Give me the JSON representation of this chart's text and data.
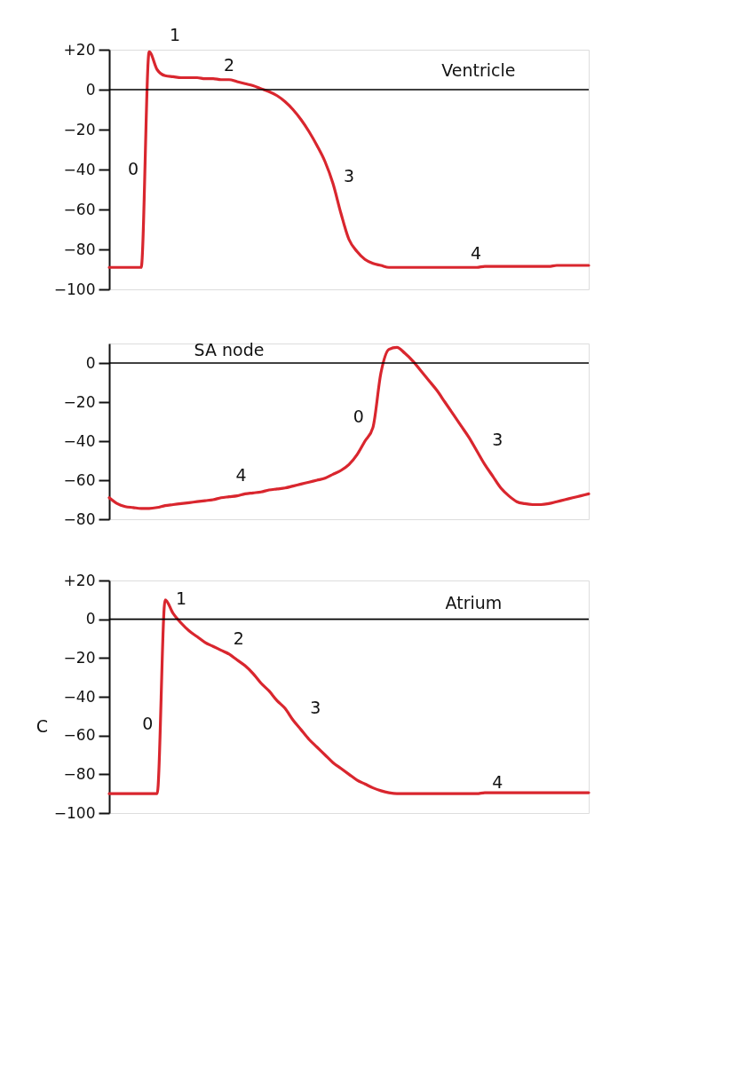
{
  "chart_data": [
    {
      "type": "line",
      "title": "Ventricle",
      "categories": [
        null,
        null,
        null,
        null,
        null,
        null,
        null,
        null,
        null,
        null,
        null,
        null,
        null,
        null,
        null,
        null,
        null,
        null,
        null,
        null,
        null,
        null,
        null,
        null,
        null,
        null,
        null,
        null,
        null,
        null,
        null,
        null,
        null,
        null,
        null,
        null,
        null,
        null,
        null,
        null,
        null,
        null,
        null,
        null,
        null,
        null,
        null,
        null,
        null,
        null,
        null,
        null,
        null,
        null,
        null,
        null,
        null,
        null,
        null,
        null,
        null
      ],
      "values": [
        -89,
        -89,
        -89,
        -89,
        -89,
        19,
        10,
        7,
        6.5,
        6,
        6,
        6,
        5.5,
        5.5,
        5,
        5,
        4,
        3,
        2,
        0.5,
        -1,
        -3,
        -6,
        -10,
        -15,
        -21,
        -28,
        -36,
        -47,
        -62,
        -75,
        -81,
        -85,
        -87,
        -88,
        -89,
        -89,
        -89,
        -89,
        -89,
        -89,
        -89,
        -89,
        -89,
        -89,
        -89,
        -89,
        -88.5,
        -88.5,
        -88.5,
        -88.5,
        -88.5,
        -88.5,
        -88.5,
        -88.5,
        -88.5,
        -88,
        -88,
        -88,
        -88,
        -88
      ],
      "color": "#d9262e",
      "ylim": [
        -100,
        20
      ],
      "yticks": [
        {
          "value": 20,
          "label": "+20"
        },
        0,
        -20,
        -40,
        -60,
        -80,
        -100
      ],
      "ref_lines": [
        {
          "axis": "y",
          "value": 0,
          "color": "#000000"
        }
      ],
      "annotations": [
        "0",
        "1",
        "2",
        "3",
        "4"
      ]
    },
    {
      "type": "line",
      "title": "SA node",
      "categories": [
        null,
        null,
        null,
        null,
        null,
        null,
        null,
        null,
        null,
        null,
        null,
        null,
        null,
        null,
        null,
        null,
        null,
        null,
        null,
        null,
        null,
        null,
        null,
        null,
        null,
        null,
        null,
        null,
        null,
        null,
        null,
        null,
        null,
        null,
        null,
        null,
        null,
        null,
        null,
        null,
        null,
        null,
        null,
        null,
        null,
        null,
        null,
        null,
        null,
        null,
        null,
        null,
        null,
        null,
        null,
        null,
        null,
        null,
        null,
        null,
        null
      ],
      "values": [
        -69,
        -72,
        -73.5,
        -74,
        -74.5,
        -74.5,
        -74,
        -73,
        -72.5,
        -72,
        -71.5,
        -71,
        -70.5,
        -70,
        -69,
        -68.5,
        -68,
        -67,
        -66.5,
        -66,
        -65,
        -64.5,
        -64,
        -63,
        -62,
        -61,
        -60,
        -59,
        -57,
        -55,
        -52,
        -47,
        -40,
        -33,
        -5,
        7,
        8,
        5,
        1,
        -4,
        -9,
        -14,
        -20,
        -26,
        -32,
        -38,
        -45,
        -52,
        -58,
        -64,
        -68,
        -71,
        -72,
        -72.5,
        -72.5,
        -72,
        -71,
        -70,
        -69,
        -68,
        -67
      ],
      "color": "#d9262e",
      "ylim": [
        -80,
        10
      ],
      "yticks": [
        0,
        -20,
        -40,
        -60,
        -80
      ],
      "ref_lines": [
        {
          "axis": "y",
          "value": 0,
          "color": "#000000"
        }
      ],
      "annotations": [
        "0",
        "3",
        "4"
      ]
    },
    {
      "type": "line",
      "title": "Atrium",
      "categories": [
        null,
        null,
        null,
        null,
        null,
        null,
        null,
        null,
        null,
        null,
        null,
        null,
        null,
        null,
        null,
        null,
        null,
        null,
        null,
        null,
        null,
        null,
        null,
        null,
        null,
        null,
        null,
        null,
        null,
        null,
        null,
        null,
        null,
        null,
        null,
        null,
        null,
        null,
        null,
        null,
        null,
        null,
        null,
        null,
        null,
        null,
        null,
        null,
        null,
        null,
        null,
        null,
        null,
        null,
        null,
        null,
        null,
        null,
        null,
        null,
        null
      ],
      "values": [
        -90,
        -90,
        -90,
        -90,
        -90,
        -90,
        -90,
        10,
        3,
        -2,
        -6,
        -9,
        -12,
        -14,
        -16,
        -18,
        -21,
        -24,
        -28,
        -33,
        -37,
        -42,
        -46,
        -52,
        -57,
        -62,
        -66,
        -70,
        -74,
        -77,
        -80,
        -83,
        -85,
        -87,
        -88.5,
        -89.5,
        -90,
        -90,
        -90,
        -90,
        -90,
        -90,
        -90,
        -90,
        -90,
        -90,
        -90,
        -89.5,
        -89.5,
        -89.5,
        -89.5,
        -89.5,
        -89.5,
        -89.5,
        -89.5,
        -89.5,
        -89.5,
        -89.5,
        -89.5,
        -89.5,
        -89.5
      ],
      "color": "#d9262e",
      "ylim": [
        -100,
        20
      ],
      "yticks": [
        {
          "value": 20,
          "label": "+20"
        },
        0,
        -20,
        -40,
        -60,
        -80,
        -100
      ],
      "ref_lines": [
        {
          "axis": "y",
          "value": 0,
          "color": "#000000"
        }
      ],
      "annotations": [
        "C",
        "0",
        "1",
        "2",
        "3",
        "4"
      ]
    }
  ]
}
